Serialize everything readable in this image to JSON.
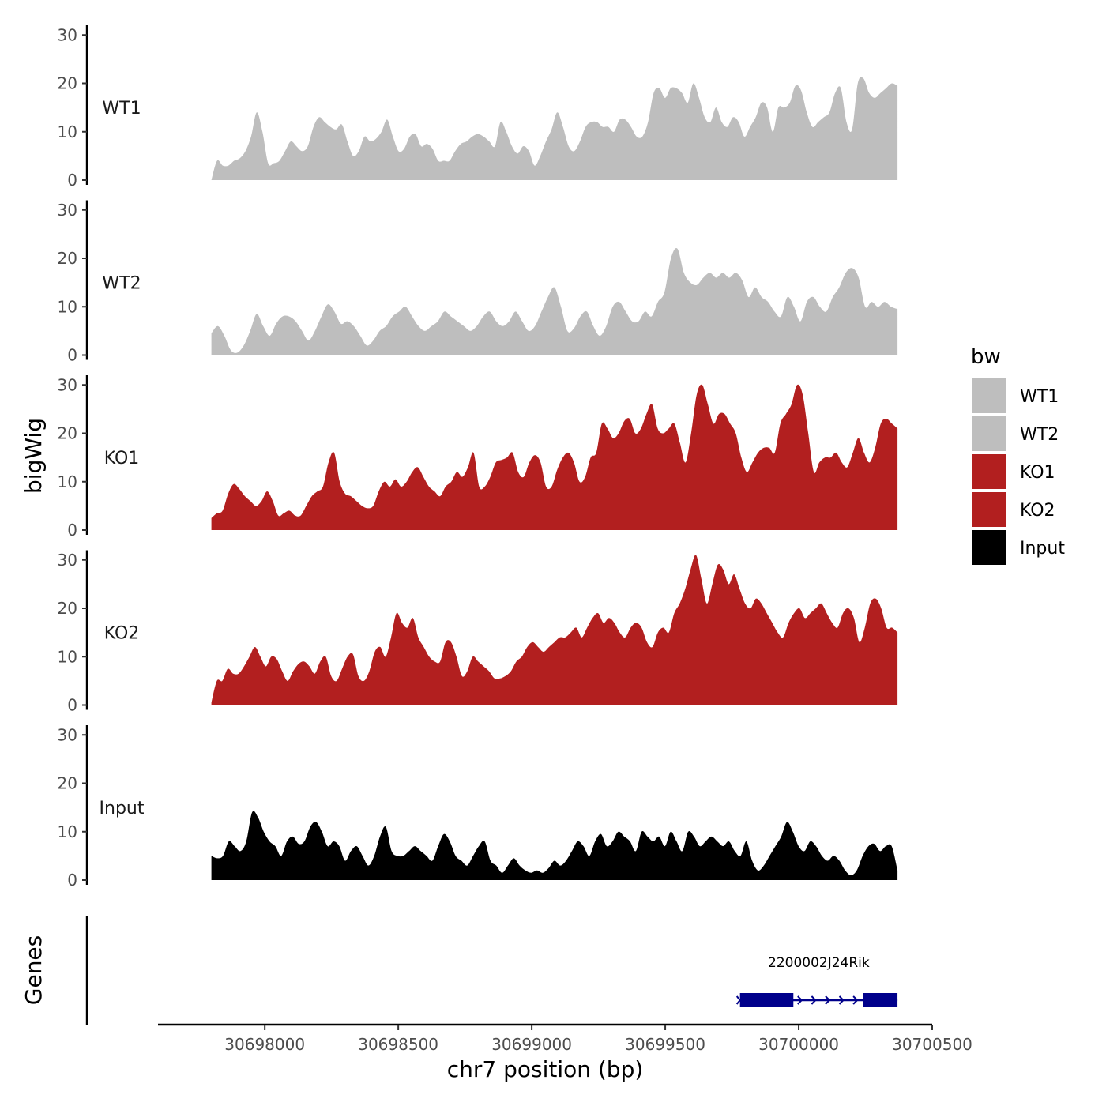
{
  "chart_data": {
    "type": "area",
    "title": "",
    "xlabel": "chr7 position (bp)",
    "ylabel": "bigWig",
    "genes_label": "Genes",
    "xlim": [
      30697600,
      30700500
    ],
    "x_ticks": [
      30698000,
      30698500,
      30699000,
      30699500,
      30700000,
      30700500
    ],
    "x_tick_labels": [
      "30698000",
      "30698500",
      "30699000",
      "30699500",
      "30700000",
      "30700500"
    ],
    "ylim": [
      0,
      32
    ],
    "y_ticks": [
      0,
      10,
      20,
      30
    ],
    "y_tick_labels": [
      "0",
      "10",
      "20",
      "30"
    ],
    "x_start": 30697800,
    "x_end": 30700370,
    "legend": {
      "title": "bw",
      "placement": "right",
      "entries": [
        {
          "label": "WT1",
          "color": "#BEBEBE"
        },
        {
          "label": "WT2",
          "color": "#BEBEBE"
        },
        {
          "label": "KO1",
          "color": "#B21F1F"
        },
        {
          "label": "KO2",
          "color": "#B21F1F"
        },
        {
          "label": "Input",
          "color": "#000000"
        }
      ]
    },
    "series": [
      {
        "name": "WT1",
        "color": "#BEBEBE",
        "values": [
          0,
          4,
          3,
          3,
          4,
          4.5,
          6,
          9,
          14,
          10,
          3.5,
          3.5,
          4,
          6,
          8,
          7,
          6,
          7,
          11,
          13,
          12,
          11,
          10.5,
          11.5,
          8,
          5,
          6,
          9,
          8,
          8.5,
          10,
          12.5,
          9,
          6,
          6.5,
          9,
          9.5,
          7,
          7.5,
          6.5,
          4,
          4,
          4,
          6,
          7.5,
          8,
          9,
          9.5,
          9,
          8,
          7,
          12,
          10,
          7,
          5.5,
          7,
          6,
          3,
          5,
          8,
          10.5,
          14,
          11,
          7,
          6,
          8,
          11,
          12,
          12,
          11,
          11,
          10,
          12.5,
          12.5,
          11,
          9,
          9,
          12,
          18,
          19,
          17,
          19,
          19,
          18,
          16,
          20,
          17,
          13,
          12,
          15,
          12,
          11,
          13,
          12,
          9,
          11,
          13,
          16,
          15,
          10,
          15,
          15,
          16,
          19.5,
          18.5,
          14,
          11,
          12,
          13,
          14,
          18,
          19,
          12,
          10.5,
          20,
          21,
          18,
          17,
          18,
          19,
          20,
          19.5
        ]
      },
      {
        "name": "WT2",
        "color": "#BEBEBE",
        "values": [
          4.5,
          6,
          4,
          1,
          0.5,
          2,
          5,
          8.5,
          6,
          4,
          6.5,
          8,
          8,
          7,
          5,
          3,
          5,
          8,
          10.5,
          9,
          6.5,
          7,
          6,
          4,
          2,
          3,
          5,
          6,
          8,
          9,
          10,
          8,
          6,
          5,
          6,
          7,
          9,
          8,
          7,
          6,
          5,
          6,
          8,
          9,
          7,
          6,
          7,
          9,
          7,
          5,
          6,
          9,
          12,
          14,
          10,
          5,
          5.5,
          8,
          9,
          6,
          4,
          6,
          10,
          11,
          9,
          7,
          7,
          9,
          8,
          11,
          13,
          20,
          22,
          17,
          15,
          14.5,
          16,
          17,
          16,
          17,
          16,
          17,
          15.5,
          12,
          14,
          12,
          11,
          9,
          8,
          12,
          10,
          7,
          11,
          12,
          10,
          9,
          12,
          14,
          17,
          18,
          16,
          10,
          11,
          10,
          11,
          10,
          9.5
        ]
      },
      {
        "name": "KO1",
        "color": "#B21F1F",
        "values": [
          2.5,
          3.5,
          4,
          7.5,
          9.5,
          8.5,
          7,
          6,
          5,
          6,
          8,
          6,
          3,
          3.5,
          4,
          3,
          3,
          5,
          7,
          8,
          9,
          14,
          16,
          10,
          7.5,
          7,
          6,
          5,
          4.5,
          5,
          8,
          10,
          9,
          10.5,
          9,
          10,
          12,
          13,
          11,
          9,
          8,
          7,
          9,
          10,
          12,
          11,
          13,
          16,
          9,
          9,
          11,
          14,
          14.5,
          15,
          16,
          12,
          11,
          14,
          15.5,
          14,
          9,
          9,
          12.5,
          15,
          16,
          14,
          10,
          11,
          15,
          16,
          22,
          21,
          19,
          20,
          22.5,
          23,
          20,
          21,
          24,
          26,
          21,
          20,
          21,
          22,
          18,
          14,
          20,
          28,
          30,
          26,
          22,
          24,
          24,
          22,
          20,
          15,
          12,
          14,
          16,
          17,
          17,
          16,
          22,
          24,
          26,
          30,
          28,
          20,
          12,
          14,
          15,
          15,
          16,
          14,
          13,
          16,
          19,
          16,
          14,
          17,
          22,
          23,
          22,
          21
        ]
      },
      {
        "name": "KO2",
        "color": "#B21F1F",
        "values": [
          0.5,
          5,
          5,
          7.5,
          6.5,
          6.5,
          8,
          10,
          12,
          10,
          8,
          10,
          9.5,
          7,
          5,
          7,
          8.5,
          9,
          8,
          6.5,
          9,
          10,
          6,
          5,
          7.5,
          10,
          10.5,
          6,
          5,
          7,
          11,
          12,
          10,
          14,
          19,
          17,
          16,
          18,
          14,
          12,
          10,
          9,
          9,
          13,
          13,
          10,
          6,
          7,
          10,
          9,
          8,
          7,
          5.5,
          5.5,
          6,
          7,
          9,
          10,
          12,
          13,
          12,
          11,
          12,
          13,
          14,
          14,
          15,
          16,
          14,
          16,
          18,
          19,
          17,
          18,
          17,
          15,
          14,
          16,
          17,
          16,
          13,
          12,
          15,
          16,
          15,
          19,
          21,
          24,
          28,
          31,
          26,
          21,
          25,
          29,
          28,
          25,
          27,
          24,
          21,
          20,
          22,
          21,
          19,
          17,
          15,
          14,
          17,
          19,
          20,
          18,
          19,
          20,
          21,
          19,
          17,
          16,
          19,
          20,
          18,
          13,
          16,
          21,
          22,
          20,
          16,
          16,
          15
        ]
      },
      {
        "name": "Input",
        "color": "#000000",
        "values": [
          5,
          4.5,
          5,
          8,
          7,
          6,
          8,
          14,
          13,
          10,
          8,
          7,
          5,
          8,
          9,
          7.5,
          8,
          11,
          12,
          10,
          7,
          8,
          7,
          4,
          6,
          7,
          5,
          3,
          5,
          9,
          11,
          6,
          5,
          5,
          6,
          7,
          6,
          5,
          4,
          7,
          9.5,
          8,
          5,
          4,
          3,
          5,
          7,
          8,
          4,
          3,
          1.5,
          3,
          4.5,
          3,
          2,
          1.5,
          2,
          1.5,
          2.5,
          4,
          3,
          4,
          6,
          8,
          7,
          5,
          8,
          9.5,
          7,
          8,
          10,
          9,
          8,
          6,
          10,
          9,
          8,
          9,
          7,
          10,
          8,
          6,
          10,
          9,
          7,
          8,
          9,
          8,
          7,
          8,
          6,
          5,
          8,
          4,
          2,
          3,
          5,
          7,
          9,
          12,
          10,
          7,
          6,
          8,
          7,
          5,
          4,
          5,
          4,
          2,
          1,
          2,
          5,
          7,
          7.5,
          6,
          7,
          7,
          2
        ]
      }
    ],
    "genes": [
      {
        "name": "2200002J24Rik",
        "start": 30699780,
        "end": 30700370,
        "exons": [
          [
            30699780,
            30699980
          ],
          [
            30700240,
            30700370
          ]
        ],
        "strand": "+",
        "color": "#00008B"
      }
    ]
  }
}
